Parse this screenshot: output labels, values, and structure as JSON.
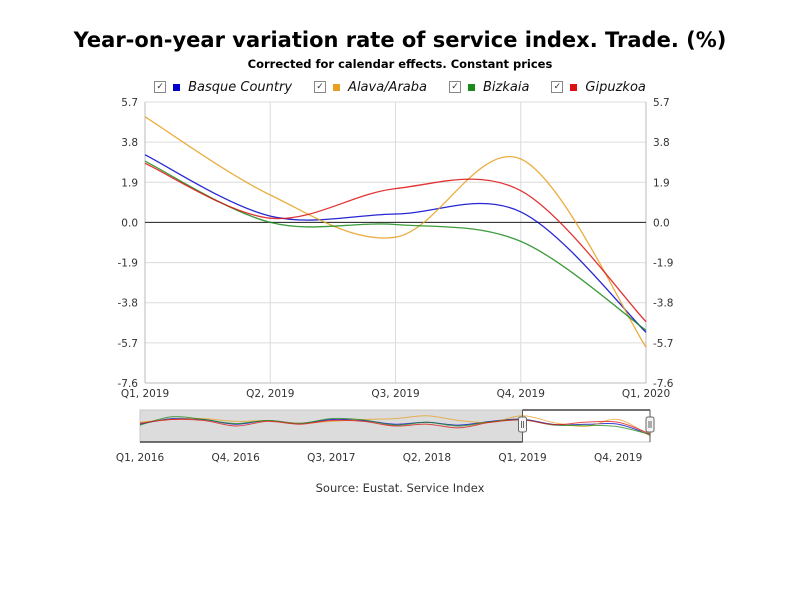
{
  "chart_data": {
    "type": "line",
    "title": "Year-on-year variation rate of service index. Trade. (%)",
    "subtitle": "Corrected for calendar effects. Constant prices",
    "source": "Source: Eustat. Service Index",
    "x": [
      "Q1, 2019",
      "Q2, 2019",
      "Q3, 2019",
      "Q4, 2019",
      "Q1, 2020"
    ],
    "ylim": [
      -7.6,
      5.7
    ],
    "yticks": [
      "5.7",
      "3.8",
      "1.9",
      "0.0",
      "-1.9",
      "-3.8",
      "-5.7",
      "-7.6"
    ],
    "grid": true,
    "legend_position": "top",
    "series": [
      {
        "name": "Basque Country",
        "color": "#0000cc",
        "values": [
          3.2,
          0.3,
          0.4,
          0.5,
          -5.2
        ],
        "checked": true
      },
      {
        "name": "Alava/Araba",
        "color": "#e8a020",
        "values": [
          5.0,
          1.3,
          -0.7,
          3.0,
          -5.9
        ],
        "checked": true
      },
      {
        "name": "Bizkaia",
        "color": "#1a8a1a",
        "values": [
          2.9,
          0.0,
          -0.1,
          -0.9,
          -5.1
        ],
        "checked": true
      },
      {
        "name": "Gipuzkoa",
        "color": "#dd1111",
        "values": [
          2.8,
          0.2,
          1.6,
          1.5,
          -4.7
        ],
        "checked": true
      }
    ],
    "navigator": {
      "labels": [
        "Q1, 2016",
        "Q4, 2016",
        "Q3, 2017",
        "Q2, 2018",
        "Q1, 2019",
        "Q4, 2019"
      ],
      "x": [
        "Q1, 2016",
        "Q2, 2016",
        "Q3, 2016",
        "Q4, 2016",
        "Q1, 2017",
        "Q2, 2017",
        "Q3, 2017",
        "Q4, 2017",
        "Q1, 2018",
        "Q2, 2018",
        "Q3, 2018",
        "Q4, 2018",
        "Q1, 2019",
        "Q2, 2019",
        "Q3, 2019",
        "Q4, 2019",
        "Q1, 2020"
      ],
      "selection": [
        "Q1, 2019",
        "Q1, 2020"
      ],
      "series": [
        {
          "name": "Basque Country",
          "values": [
            0.5,
            3.5,
            3.0,
            0.5,
            2.5,
            1.0,
            3.0,
            2.5,
            0.5,
            1.5,
            0.0,
            2.0,
            3.2,
            0.3,
            0.4,
            0.5,
            -5.2
          ]
        },
        {
          "name": "Alava/Araba",
          "values": [
            1.5,
            3.0,
            3.5,
            2.0,
            2.5,
            1.0,
            2.0,
            3.0,
            3.5,
            5.0,
            2.5,
            1.5,
            5.0,
            1.3,
            -0.7,
            3.0,
            -5.9
          ]
        },
        {
          "name": "Bizkaia",
          "values": [
            0.0,
            4.5,
            3.0,
            0.8,
            2.5,
            0.8,
            3.5,
            2.8,
            0.0,
            1.5,
            -0.5,
            1.8,
            2.9,
            0.0,
            -0.1,
            -0.9,
            -5.1
          ]
        },
        {
          "name": "Gipuzkoa",
          "values": [
            1.0,
            3.0,
            2.5,
            -0.5,
            2.0,
            0.5,
            2.5,
            2.0,
            -0.5,
            0.5,
            -1.5,
            1.5,
            2.8,
            0.2,
            1.6,
            1.5,
            -4.7
          ]
        }
      ]
    }
  }
}
